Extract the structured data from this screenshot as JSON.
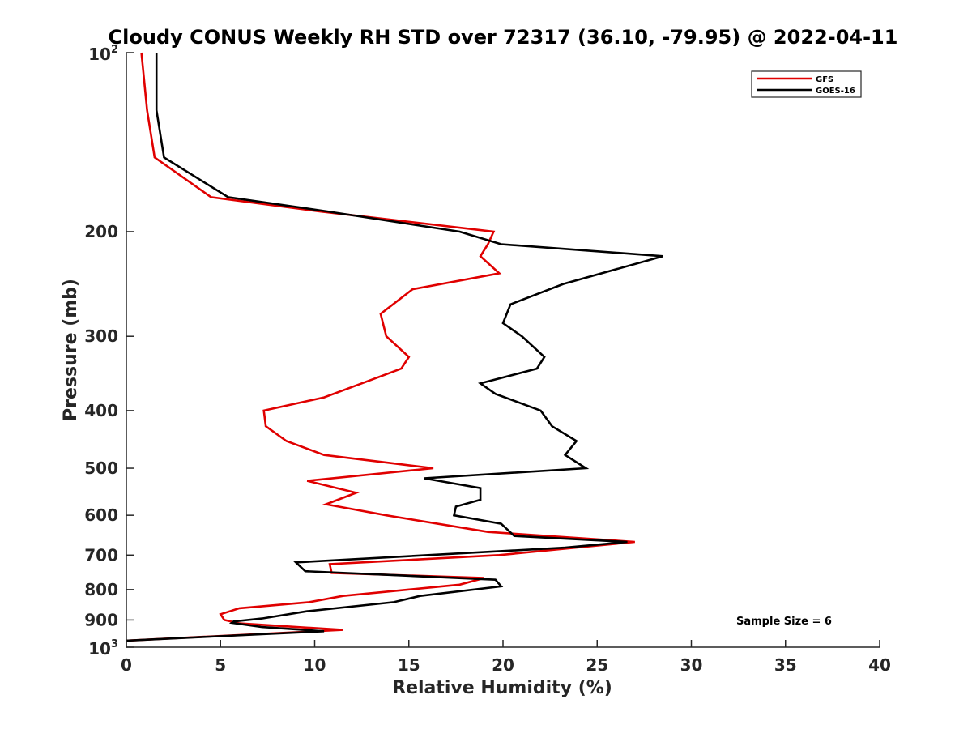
{
  "chart_data": {
    "type": "line",
    "title": "Cloudy CONUS Weekly RH STD over 72317 (36.10, -79.95) @ 2022-04-11",
    "xlabel": "Relative Humidity (%)",
    "ylabel": "Pressure (mb)",
    "xlim": [
      0,
      40
    ],
    "ylim": [
      1000,
      100
    ],
    "y_scale": "log",
    "y_reversed": true,
    "x_ticks": [
      "0",
      "5",
      "10",
      "15",
      "20",
      "25",
      "30",
      "35",
      "40"
    ],
    "y_ticks": [
      {
        "value": 200,
        "label": "200"
      },
      {
        "value": 300,
        "label": "300"
      },
      {
        "value": 400,
        "label": "400"
      },
      {
        "value": 500,
        "label": "500"
      },
      {
        "value": 600,
        "label": "600"
      },
      {
        "value": 700,
        "label": "700"
      },
      {
        "value": 800,
        "label": "800"
      },
      {
        "value": 900,
        "label": "900"
      }
    ],
    "y_endpoint_labels": [
      {
        "value": 100,
        "base": "10",
        "exp": "2"
      },
      {
        "value": 1000,
        "base": "10",
        "exp": "3"
      }
    ],
    "legend_position": "top-right",
    "grid": false,
    "annotation": "Sample Size = 6",
    "series": [
      {
        "name": "GFS",
        "color": "#e00000",
        "points": [
          [
            0.8,
            100
          ],
          [
            1.1,
            125
          ],
          [
            1.5,
            150
          ],
          [
            4.5,
            175
          ],
          [
            10.3,
            185
          ],
          [
            19.5,
            200
          ],
          [
            19.2,
            210
          ],
          [
            18.8,
            220
          ],
          [
            19.8,
            235
          ],
          [
            15.2,
            250
          ],
          [
            13.5,
            275
          ],
          [
            13.8,
            300
          ],
          [
            15.0,
            325
          ],
          [
            14.6,
            340
          ],
          [
            12.5,
            360
          ],
          [
            10.5,
            380
          ],
          [
            7.3,
            400
          ],
          [
            7.4,
            425
          ],
          [
            8.5,
            450
          ],
          [
            10.5,
            475
          ],
          [
            14.0,
            490
          ],
          [
            16.3,
            500
          ],
          [
            9.6,
            525
          ],
          [
            12.2,
            550
          ],
          [
            10.6,
            575
          ],
          [
            13.8,
            600
          ],
          [
            19.2,
            640
          ],
          [
            27.0,
            665
          ],
          [
            19.8,
            700
          ],
          [
            10.8,
            725
          ],
          [
            10.9,
            750
          ],
          [
            19.0,
            765
          ],
          [
            17.7,
            785
          ],
          [
            11.5,
            820
          ],
          [
            9.7,
            840
          ],
          [
            6.0,
            860
          ],
          [
            5.0,
            880
          ],
          [
            5.2,
            900
          ],
          [
            6.0,
            912
          ],
          [
            11.5,
            935
          ],
          [
            0.0,
            975
          ]
        ]
      },
      {
        "name": "GOES-16",
        "color": "#000000",
        "points": [
          [
            1.6,
            100
          ],
          [
            1.6,
            125
          ],
          [
            2.0,
            150
          ],
          [
            5.4,
            175
          ],
          [
            10.7,
            185
          ],
          [
            17.7,
            200
          ],
          [
            19.9,
            210
          ],
          [
            28.5,
            220
          ],
          [
            23.2,
            245
          ],
          [
            20.4,
            265
          ],
          [
            20.0,
            285
          ],
          [
            21.0,
            300
          ],
          [
            22.2,
            325
          ],
          [
            21.8,
            340
          ],
          [
            18.8,
            360
          ],
          [
            19.6,
            375
          ],
          [
            22.0,
            400
          ],
          [
            22.6,
            425
          ],
          [
            23.9,
            450
          ],
          [
            23.3,
            475
          ],
          [
            24.4,
            500
          ],
          [
            15.8,
            520
          ],
          [
            18.8,
            540
          ],
          [
            18.8,
            565
          ],
          [
            17.5,
            580
          ],
          [
            17.4,
            600
          ],
          [
            19.9,
            620
          ],
          [
            20.6,
            650
          ],
          [
            26.6,
            665
          ],
          [
            23.3,
            680
          ],
          [
            9.0,
            720
          ],
          [
            9.5,
            745
          ],
          [
            19.6,
            770
          ],
          [
            19.9,
            790
          ],
          [
            15.6,
            820
          ],
          [
            14.2,
            840
          ],
          [
            9.6,
            870
          ],
          [
            7.2,
            895
          ],
          [
            5.7,
            905
          ],
          [
            5.6,
            910
          ],
          [
            7.2,
            925
          ],
          [
            10.5,
            940
          ],
          [
            0.0,
            975
          ]
        ]
      }
    ]
  }
}
